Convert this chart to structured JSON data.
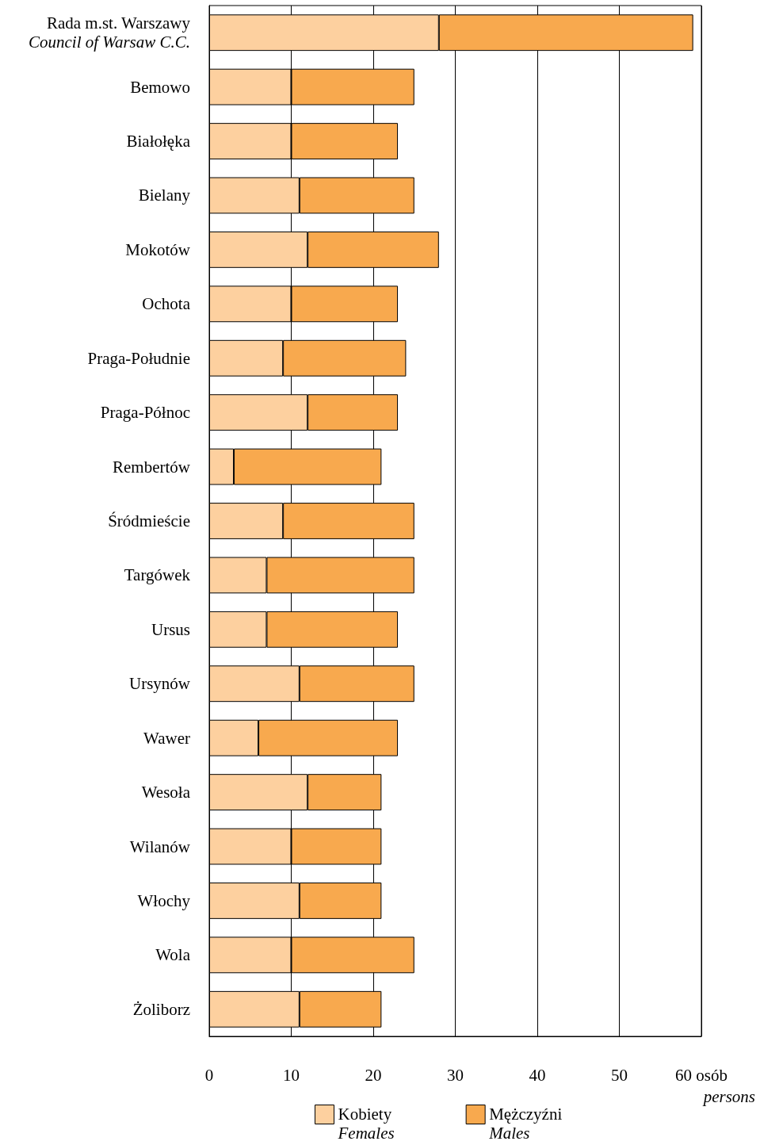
{
  "chart_data": {
    "type": "bar",
    "orientation": "horizontal",
    "stacked": true,
    "categories": [
      "Rada m.st. Warszawy\nCouncil of Warsaw C.C.",
      "Bemowo",
      "Białołęka",
      "Bielany",
      "Mokotów",
      "Ochota",
      "Praga-Południe",
      "Praga-Północ",
      "Rembertów",
      "Śródmieście",
      "Targówek",
      "Ursus",
      "Ursynów",
      "Wawer",
      "Wesoła",
      "Wilanów",
      "Włochy",
      "Wola",
      "Żoliborz"
    ],
    "series": [
      {
        "name": "Kobiety\nFemales",
        "color": "#fdd09f",
        "values": [
          28,
          10,
          10,
          11,
          12,
          10,
          9,
          12,
          3,
          9,
          7,
          7,
          11,
          6,
          12,
          10,
          11,
          10,
          11
        ]
      },
      {
        "name": "Mężczyźni\nMales",
        "color": "#f8a94e",
        "values": [
          31,
          15,
          13,
          14,
          16,
          13,
          15,
          11,
          18,
          16,
          18,
          16,
          14,
          17,
          9,
          11,
          10,
          15,
          10
        ]
      }
    ],
    "xlim": [
      0,
      60
    ],
    "xticks": [
      0,
      10,
      20,
      30,
      40,
      50,
      {
        "value": 60,
        "label": "60 osób"
      }
    ],
    "xlabel": "persons",
    "grid": "x",
    "legend": "bottom"
  }
}
